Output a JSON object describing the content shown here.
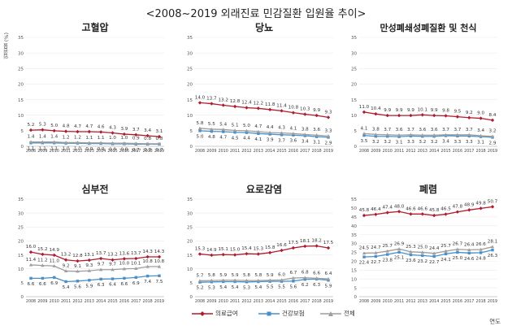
{
  "title": "<2008~2019 외래진료 민감질환 입원율 추이>",
  "y_axis_title": "입원율 (%)",
  "x_axis_title": "연도",
  "legend": [
    {
      "name": "의료급여",
      "color": "#b01c2e",
      "marker": "diamond"
    },
    {
      "name": "건강보험",
      "color": "#4a90c8",
      "marker": "square"
    },
    {
      "name": "전체",
      "color": "#9e9e9e",
      "marker": "triangle"
    }
  ],
  "chart_data": [
    {
      "type": "line",
      "title": "고혈압",
      "x": [
        "2008",
        "2009",
        "2010",
        "2011",
        "2012",
        "2013",
        "2014",
        "2015",
        "2016",
        "2017",
        "2018",
        "2019"
      ],
      "ylim": [
        0,
        35
      ],
      "yticks": [
        0,
        5,
        10,
        15,
        20,
        25,
        30,
        35
      ],
      "series": [
        {
          "name": "의료급여",
          "values": [
            5.2,
            5.3,
            5.0,
            4.8,
            4.7,
            4.7,
            4.6,
            4.3,
            3.9,
            3.7,
            3.4,
            3.1
          ]
        },
        {
          "name": "건강보험",
          "values": [
            1.1,
            1.1,
            1.1,
            1.0,
            1.0,
            0.9,
            0.9,
            0.8,
            0.8,
            0.7,
            0.7,
            0.7
          ]
        },
        {
          "name": "전체",
          "values": [
            1.4,
            1.4,
            1.4,
            1.2,
            1.2,
            1.1,
            1.1,
            1.0,
            1.0,
            0.9,
            0.8,
            0.8
          ]
        }
      ]
    },
    {
      "type": "line",
      "title": "당뇨",
      "x": [
        "2008",
        "2009",
        "2010",
        "2011",
        "2012",
        "2013",
        "2014",
        "2015",
        "2016",
        "2017",
        "2018",
        "2019"
      ],
      "ylim": [
        0,
        35
      ],
      "yticks": [
        0,
        5,
        10,
        15,
        20,
        25,
        30,
        35
      ],
      "series": [
        {
          "name": "의료급여",
          "values": [
            14.0,
            13.7,
            13.2,
            12.8,
            12.4,
            12.2,
            11.8,
            11.4,
            10.8,
            10.3,
            9.9,
            9.3
          ]
        },
        {
          "name": "건강보험",
          "values": [
            5.0,
            4.8,
            4.7,
            4.5,
            4.4,
            4.1,
            3.9,
            3.7,
            3.6,
            3.4,
            3.1,
            2.9
          ]
        },
        {
          "name": "전체",
          "values": [
            5.8,
            5.5,
            5.4,
            5.1,
            5.0,
            4.7,
            4.4,
            4.3,
            4.1,
            3.8,
            3.6,
            3.3
          ]
        }
      ]
    },
    {
      "type": "line",
      "title": "만성폐쇄성폐질환 및 천식",
      "x": [
        "2008",
        "2009",
        "2010",
        "2011",
        "2012",
        "2013",
        "2014",
        "2015",
        "2016",
        "2017",
        "2018",
        "2019"
      ],
      "ylim": [
        0,
        35
      ],
      "yticks": [
        0,
        5,
        10,
        15,
        20,
        25,
        30,
        35
      ],
      "series": [
        {
          "name": "의료급여",
          "values": [
            11.0,
            10.4,
            9.9,
            9.9,
            9.9,
            10.1,
            9.9,
            9.8,
            9.5,
            9.2,
            9.0,
            8.4
          ]
        },
        {
          "name": "건강보험",
          "values": [
            3.5,
            3.2,
            3.2,
            3.1,
            3.3,
            3.2,
            3.2,
            3.4,
            3.3,
            3.3,
            3.1,
            2.9
          ]
        },
        {
          "name": "전체",
          "values": [
            4.1,
            3.8,
            3.7,
            3.6,
            3.7,
            3.6,
            3.6,
            3.7,
            3.7,
            3.7,
            3.4,
            3.2
          ]
        }
      ]
    },
    {
      "type": "line",
      "title": "심부전",
      "x": [
        "2008",
        "2009",
        "2010",
        "2011",
        "2012",
        "2013",
        "2014",
        "2015",
        "2016",
        "2017",
        "2018",
        "2019"
      ],
      "ylim": [
        0,
        35
      ],
      "yticks": [
        0,
        5,
        10,
        15,
        20,
        25,
        30,
        35
      ],
      "series": [
        {
          "name": "의료급여",
          "values": [
            16.0,
            15.2,
            14.9,
            13.2,
            12.8,
            13.1,
            13.7,
            13.2,
            13.6,
            13.7,
            14.3,
            14.3
          ]
        },
        {
          "name": "건강보험",
          "values": [
            6.6,
            6.6,
            6.9,
            5.4,
            5.6,
            5.9,
            6.3,
            6.4,
            6.6,
            6.9,
            7.4,
            7.5
          ]
        },
        {
          "name": "전체",
          "values": [
            11.4,
            11.2,
            11.0,
            9.2,
            9.1,
            9.3,
            9.7,
            9.7,
            10.0,
            10.1,
            10.8,
            10.8
          ]
        }
      ]
    },
    {
      "type": "line",
      "title": "요로감염",
      "x": [
        "2008",
        "2009",
        "2010",
        "2011",
        "2012",
        "2013",
        "2014",
        "2015",
        "2016",
        "2017",
        "2018",
        "2019"
      ],
      "ylim": [
        0,
        35
      ],
      "yticks": [
        0,
        5,
        10,
        15,
        20,
        25,
        30,
        35
      ],
      "series": [
        {
          "name": "의료급여",
          "values": [
            15.3,
            14.9,
            15.1,
            15.0,
            15.4,
            15.3,
            15.8,
            16.6,
            17.5,
            18.1,
            18.2,
            17.5
          ]
        },
        {
          "name": "건강보험",
          "values": [
            5.2,
            5.3,
            5.4,
            5.4,
            5.3,
            5.4,
            5.5,
            5.5,
            5.6,
            6.2,
            6.3,
            5.9
          ]
        },
        {
          "name": "전체",
          "values": [
            5.7,
            5.8,
            5.9,
            5.9,
            5.8,
            5.8,
            5.9,
            6.0,
            6.7,
            6.8,
            6.6,
            6.4
          ]
        }
      ]
    },
    {
      "type": "line",
      "title": "폐렴",
      "x": [
        "2008",
        "2009",
        "2010",
        "2011",
        "2012",
        "2013",
        "2014",
        "2015",
        "2016",
        "2017",
        "2018",
        "2019"
      ],
      "ylim": [
        0,
        55
      ],
      "yticks": [
        0,
        5,
        10,
        15,
        20,
        25,
        30,
        35,
        40,
        45,
        50,
        55
      ],
      "series": [
        {
          "name": "의료급여",
          "values": [
            45.8,
            46.4,
            47.4,
            48.0,
            46.6,
            46.6,
            45.8,
            46.5,
            47.8,
            48.9,
            49.8,
            50.7
          ]
        },
        {
          "name": "건강보험",
          "values": [
            22.4,
            22.7,
            23.8,
            25.1,
            23.6,
            23.2,
            22.7,
            24.1,
            25.0,
            24.6,
            24.8,
            26.3
          ]
        },
        {
          "name": "전체",
          "values": [
            24.5,
            24.7,
            25.7,
            26.9,
            25.3,
            25.0,
            24.4,
            25.7,
            26.7,
            26.4,
            26.6,
            28.1
          ]
        }
      ]
    }
  ]
}
